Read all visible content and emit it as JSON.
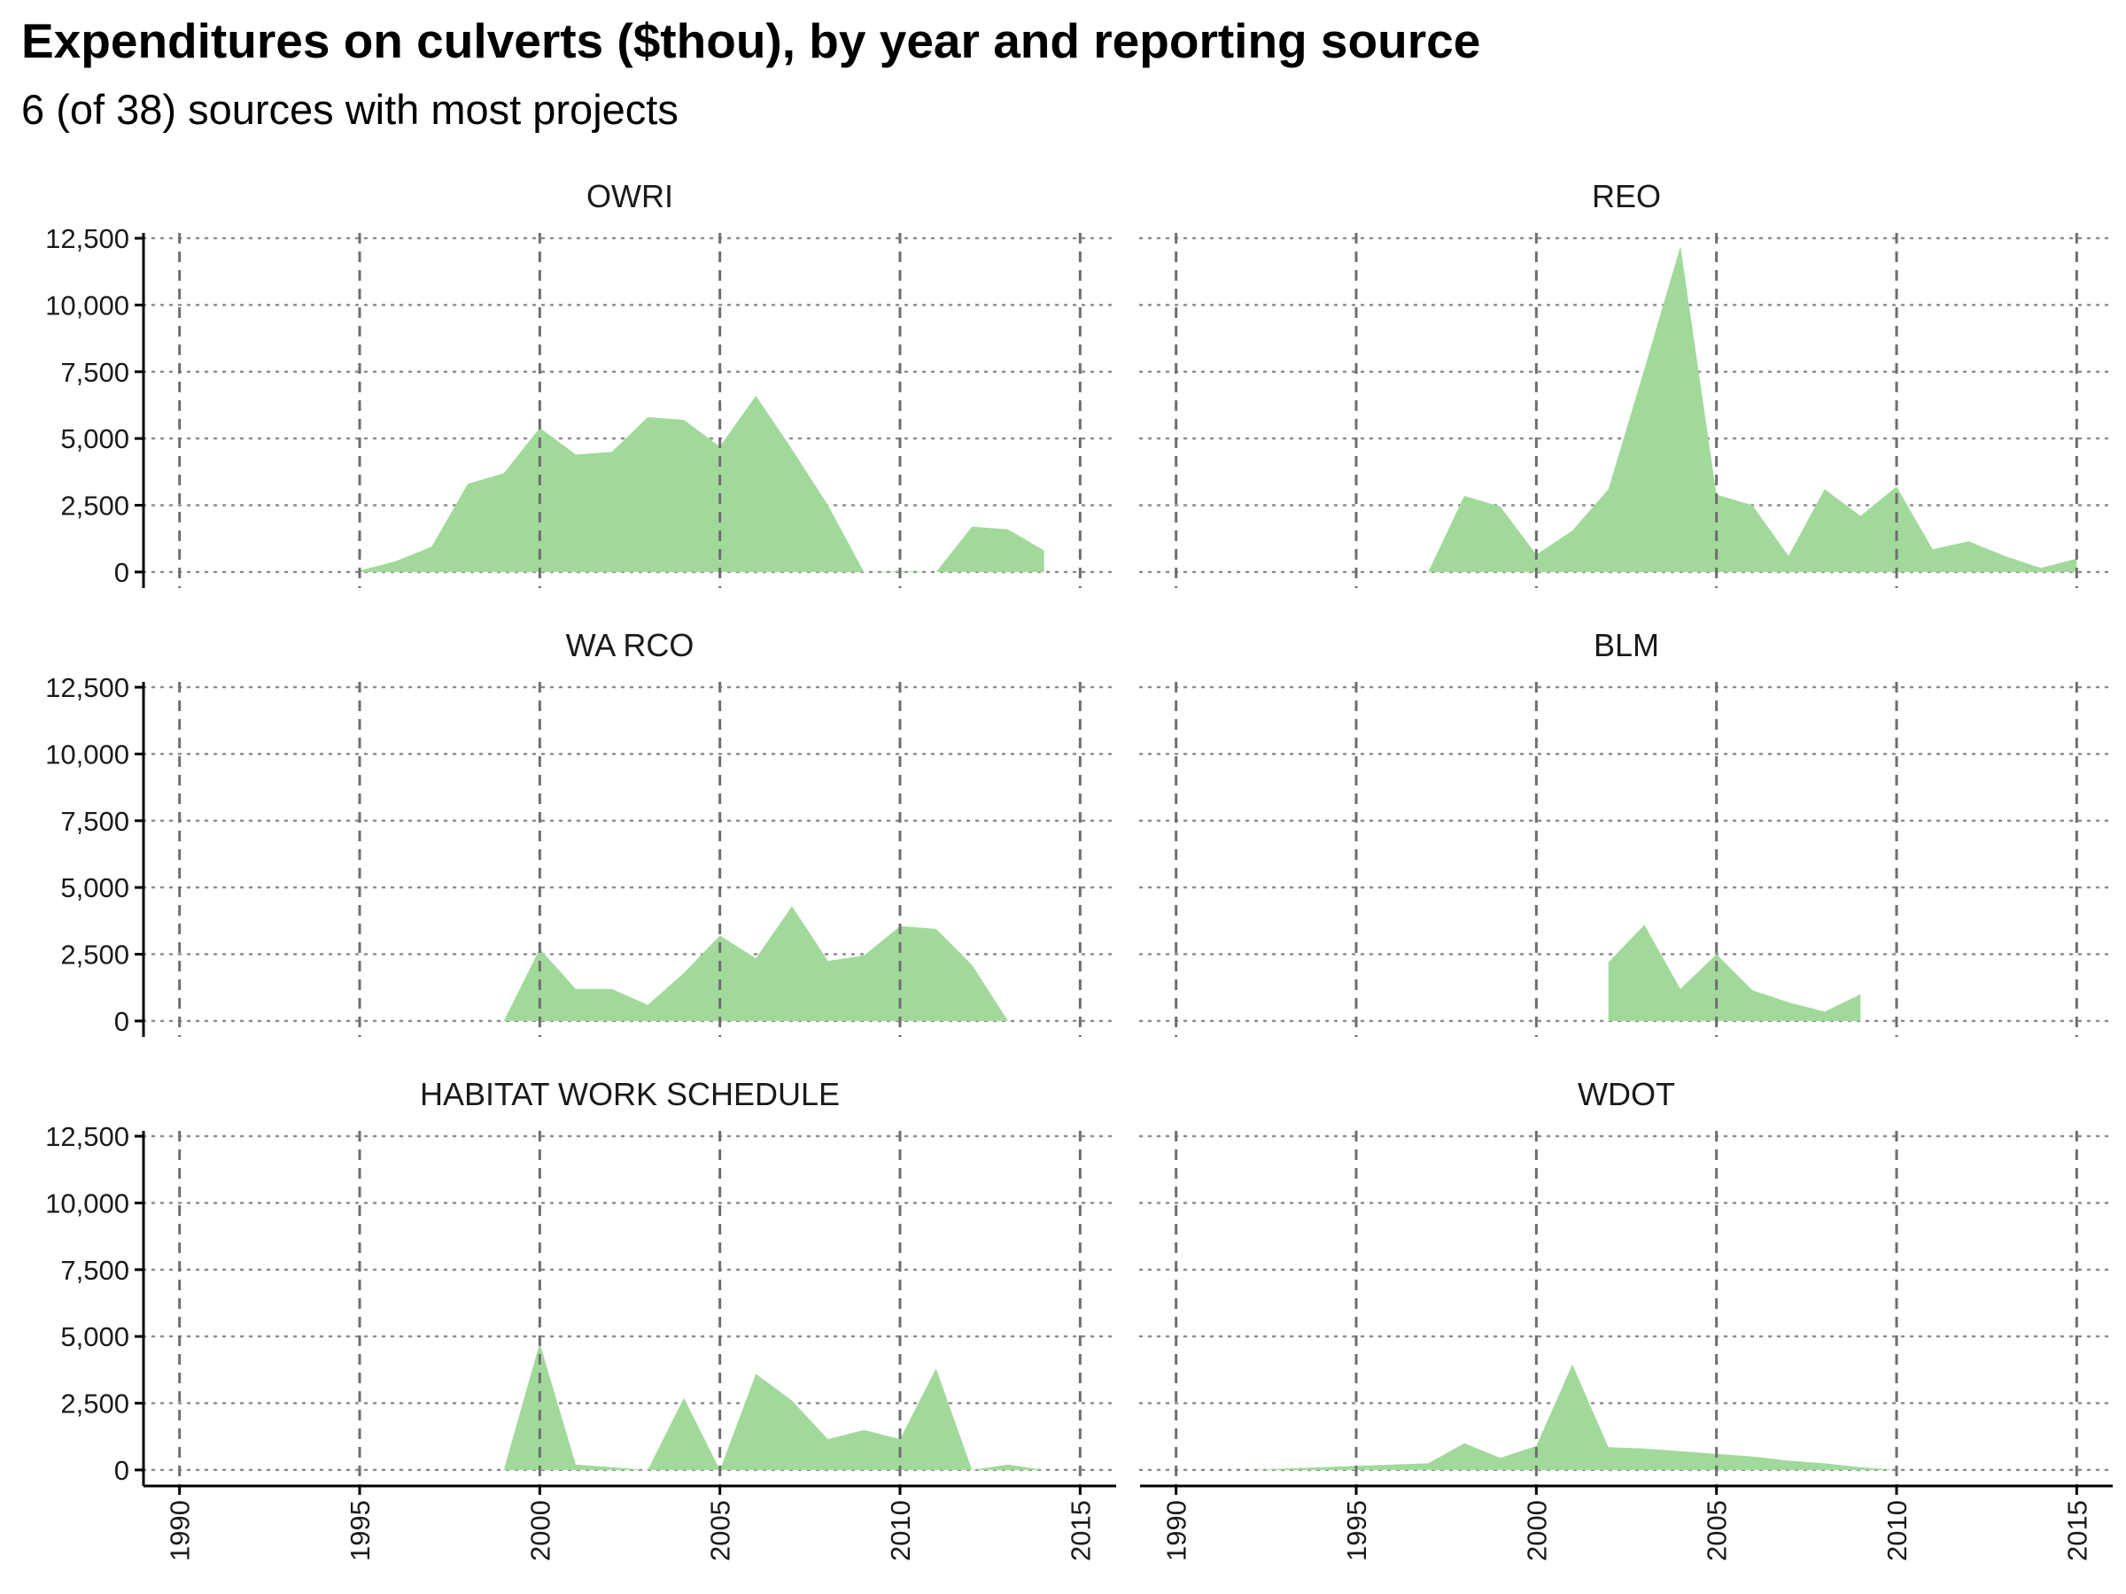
{
  "title": "Expenditures on culverts ($thou), by year and reporting source",
  "subtitle": "6 (of 38) sources with most projects",
  "colors": {
    "area": "#a1d99b",
    "grid": "#8c8c8c",
    "axis": "#000000"
  },
  "chart_data": {
    "type": "area",
    "layout": "faceted 3 rows x 2 columns",
    "x_ticks": [
      1990,
      1995,
      2000,
      2005,
      2010,
      2015
    ],
    "y_ticks": [
      0,
      2500,
      5000,
      7500,
      10000,
      12500
    ],
    "y_tick_labels": [
      "0",
      "2,500",
      "5,000",
      "7,500",
      "10,000",
      "12,500"
    ],
    "xlim": [
      1989,
      2016
    ],
    "ylim": [
      -600,
      12700
    ],
    "panels": [
      {
        "name": "OWRI",
        "x": [
          1995,
          1996,
          1997,
          1998,
          1999,
          2000,
          2001,
          2002,
          2003,
          2004,
          2005,
          2006,
          2007,
          2008,
          2009,
          2010,
          2011,
          2012,
          2013,
          2014
        ],
        "y": [
          50,
          400,
          950,
          3300,
          3700,
          5400,
          4400,
          4500,
          5800,
          5700,
          4700,
          6600,
          4600,
          2500,
          0,
          30,
          0,
          1700,
          1600,
          800
        ]
      },
      {
        "name": "REO",
        "x": [
          1997,
          1998,
          1999,
          2000,
          2001,
          2002,
          2003,
          2004,
          2005,
          2006,
          2007,
          2008,
          2009,
          2010,
          2011,
          2012,
          2013,
          2014,
          2015
        ],
        "y": [
          0,
          2850,
          2450,
          650,
          1550,
          3100,
          7600,
          12200,
          2900,
          2500,
          600,
          3100,
          2100,
          3200,
          850,
          1150,
          600,
          150,
          500
        ]
      },
      {
        "name": "WA RCO",
        "x": [
          1999,
          2000,
          2001,
          2002,
          2003,
          2004,
          2005,
          2006,
          2007,
          2008,
          2009,
          2010,
          2011,
          2012,
          2013
        ],
        "y": [
          0,
          2700,
          1200,
          1200,
          600,
          1800,
          3200,
          2350,
          4300,
          2250,
          2450,
          3550,
          3450,
          2100,
          0
        ]
      },
      {
        "name": "BLM",
        "x": [
          2002,
          2003,
          2004,
          2005,
          2006,
          2007,
          2008,
          2009
        ],
        "y": [
          2200,
          3600,
          1200,
          2500,
          1150,
          700,
          350,
          1000
        ]
      },
      {
        "name": "HABITAT WORK SCHEDULE",
        "x": [
          1999,
          2000,
          2001,
          2002,
          2003,
          2004,
          2005,
          2006,
          2007,
          2008,
          2009,
          2010,
          2011,
          2012,
          2013,
          2014
        ],
        "y": [
          0,
          4750,
          200,
          100,
          0,
          2700,
          0,
          3600,
          2600,
          1150,
          1500,
          1150,
          3800,
          0,
          200,
          0
        ]
      },
      {
        "name": "WDOT",
        "x": [
          1992,
          1993,
          1994,
          1995,
          1996,
          1997,
          1998,
          1999,
          2000,
          2001,
          2002,
          2003,
          2004,
          2005,
          2006,
          2007,
          2008,
          2009,
          2010
        ],
        "y": [
          0,
          50,
          100,
          150,
          200,
          250,
          1000,
          450,
          900,
          3950,
          850,
          800,
          700,
          600,
          500,
          350,
          250,
          100,
          0
        ]
      }
    ]
  }
}
